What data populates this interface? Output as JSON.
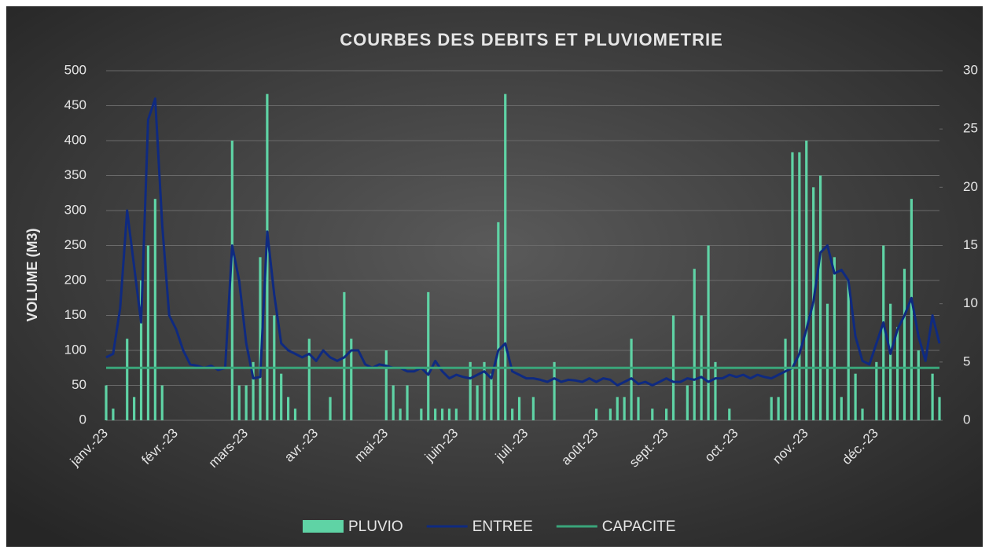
{
  "chart_data": {
    "type": "combo",
    "title": "COURBES DES DEBITS ET PLUVIOMETRIE",
    "ylabel": "VOLUME (M3)",
    "categories": [
      "janv.-23",
      null,
      null,
      null,
      null,
      null,
      null,
      null,
      null,
      null,
      "févr.-23",
      null,
      null,
      null,
      null,
      null,
      null,
      null,
      null,
      null,
      "mars-23",
      null,
      null,
      null,
      null,
      null,
      null,
      null,
      null,
      null,
      "avr.-23",
      null,
      null,
      null,
      null,
      null,
      null,
      null,
      null,
      null,
      "mai-23",
      null,
      null,
      null,
      null,
      null,
      null,
      null,
      null,
      null,
      "juin-23",
      null,
      null,
      null,
      null,
      null,
      null,
      null,
      null,
      null,
      "juil.-23",
      null,
      null,
      null,
      null,
      null,
      null,
      null,
      null,
      null,
      "août-23",
      null,
      null,
      null,
      null,
      null,
      null,
      null,
      null,
      null,
      "sept.-23",
      null,
      null,
      null,
      null,
      null,
      null,
      null,
      null,
      null,
      "oct.-23",
      null,
      null,
      null,
      null,
      null,
      null,
      null,
      null,
      null,
      "nov.-23",
      null,
      null,
      null,
      null,
      null,
      null,
      null,
      null,
      null,
      "déc.-23",
      null,
      null,
      null,
      null,
      null,
      null,
      null,
      null,
      null
    ],
    "series": [
      {
        "name": "PLUVIO",
        "type": "bar",
        "axis": "y2",
        "color": "#5fd3a5",
        "values": [
          3,
          1,
          0,
          7,
          2,
          12,
          15,
          19,
          3,
          0,
          0,
          0,
          0,
          0,
          0,
          0,
          0,
          0,
          24,
          3,
          3,
          5,
          14,
          28,
          9,
          4,
          2,
          1,
          0,
          7,
          0,
          0,
          2,
          0,
          11,
          7,
          0,
          0,
          0,
          0,
          6,
          3,
          1,
          3,
          0,
          1,
          11,
          1,
          1,
          1,
          1,
          0,
          5,
          3,
          5,
          4,
          17,
          28,
          1,
          2,
          0,
          2,
          0,
          0,
          5,
          0,
          0,
          0,
          0,
          0,
          1,
          0,
          1,
          2,
          2,
          7,
          2,
          0,
          1,
          0,
          1,
          9,
          0,
          3,
          13,
          9,
          15,
          5,
          0,
          1,
          0,
          0,
          0,
          0,
          0,
          2,
          2,
          7,
          23,
          23,
          24,
          20,
          21,
          10,
          14,
          2,
          12,
          4,
          1,
          0,
          5,
          15,
          10,
          8,
          13,
          19,
          6,
          0,
          4,
          2
        ]
      },
      {
        "name": "ENTREE",
        "type": "line",
        "color": "#0f2a80",
        "values": [
          90,
          95,
          160,
          300,
          220,
          140,
          430,
          460,
          280,
          150,
          130,
          100,
          80,
          78,
          75,
          78,
          72,
          75,
          250,
          200,
          110,
          60,
          62,
          270,
          180,
          110,
          100,
          95,
          90,
          95,
          85,
          100,
          90,
          85,
          90,
          100,
          100,
          80,
          75,
          80,
          78,
          75,
          75,
          70,
          70,
          75,
          65,
          85,
          70,
          60,
          65,
          62,
          60,
          65,
          70,
          60,
          100,
          110,
          70,
          65,
          60,
          60,
          58,
          55,
          60,
          55,
          58,
          57,
          55,
          60,
          55,
          60,
          58,
          50,
          55,
          60,
          52,
          55,
          50,
          55,
          60,
          55,
          55,
          60,
          58,
          62,
          55,
          60,
          60,
          65,
          62,
          65,
          60,
          65,
          62,
          60,
          65,
          70,
          75,
          95,
          130,
          170,
          240,
          250,
          210,
          215,
          200,
          120,
          85,
          80,
          110,
          140,
          95,
          130,
          150,
          175,
          120,
          85,
          150,
          110
        ]
      },
      {
        "name": "CAPACITE",
        "type": "line",
        "color": "#3aa57a",
        "values": [
          75,
          75,
          75,
          75,
          75,
          75,
          75,
          75,
          75,
          75,
          75,
          75,
          75,
          75,
          75,
          75,
          75,
          75,
          75,
          75,
          75,
          75,
          75,
          75,
          75,
          75,
          75,
          75,
          75,
          75,
          75,
          75,
          75,
          75,
          75,
          75,
          75,
          75,
          75,
          75,
          75,
          75,
          75,
          75,
          75,
          75,
          75,
          75,
          75,
          75,
          75,
          75,
          75,
          75,
          75,
          75,
          75,
          75,
          75,
          75,
          75,
          75,
          75,
          75,
          75,
          75,
          75,
          75,
          75,
          75,
          75,
          75,
          75,
          75,
          75,
          75,
          75,
          75,
          75,
          75,
          75,
          75,
          75,
          75,
          75,
          75,
          75,
          75,
          75,
          75,
          75,
          75,
          75,
          75,
          75,
          75,
          75,
          75,
          75,
          75,
          75,
          75,
          75,
          75,
          75,
          75,
          75,
          75,
          75,
          75,
          75,
          75,
          75,
          75,
          75,
          75,
          75,
          75,
          75,
          75
        ]
      }
    ],
    "ylim": [
      0,
      500
    ],
    "yticks": [
      0,
      50,
      100,
      150,
      200,
      250,
      300,
      350,
      400,
      450,
      500
    ],
    "y2lim": [
      0,
      30
    ],
    "y2ticks": [
      0,
      5,
      10,
      15,
      20,
      25,
      30
    ],
    "grid": true,
    "legend": "bottom"
  }
}
